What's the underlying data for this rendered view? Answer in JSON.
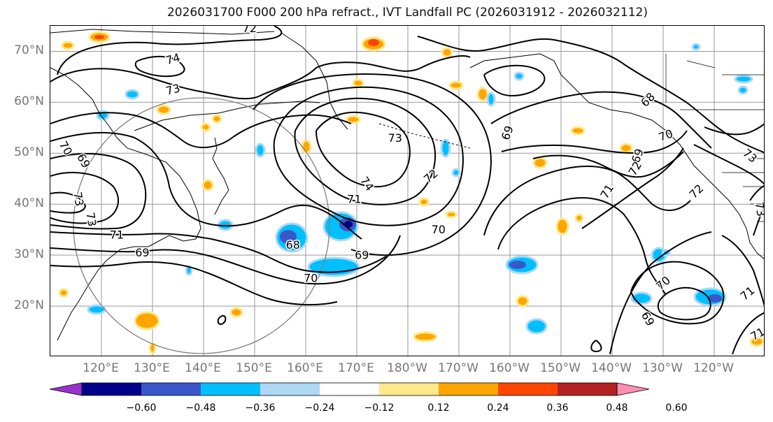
{
  "title": "2026031700 F000 200 hPa refract., IVT Landfall PC (2026031912 - 2026032112)",
  "map": {
    "lat_range": [
      10,
      75
    ],
    "lon_range_east": [
      110,
      250
    ],
    "lat_ticks": [
      {
        "value": 20,
        "label": "20°N"
      },
      {
        "value": 30,
        "label": "30°N"
      },
      {
        "value": 40,
        "label": "40°N"
      },
      {
        "value": 50,
        "label": "50°N"
      },
      {
        "value": 60,
        "label": "60°N"
      },
      {
        "value": 70,
        "label": "70°N"
      }
    ],
    "lon_ticks": [
      {
        "value": 120,
        "label": "120°E"
      },
      {
        "value": 130,
        "label": "130°E"
      },
      {
        "value": 140,
        "label": "140°E"
      },
      {
        "value": 150,
        "label": "150°E"
      },
      {
        "value": 160,
        "label": "160°E"
      },
      {
        "value": 170,
        "label": "170°E"
      },
      {
        "value": 180,
        "label": "180°W"
      },
      {
        "value": 190,
        "label": "170°W"
      },
      {
        "value": 200,
        "label": "160°W"
      },
      {
        "value": 210,
        "label": "150°W"
      },
      {
        "value": 220,
        "label": "140°W"
      },
      {
        "value": 230,
        "label": "130°W"
      },
      {
        "value": 240,
        "label": "120°W"
      }
    ],
    "contour_labels": [
      {
        "text": "74",
        "lon": 134,
        "lat": 68.5,
        "angle": -15
      },
      {
        "text": "73",
        "lon": 134,
        "lat": 62.5,
        "angle": -15
      },
      {
        "text": "72",
        "lon": 149,
        "lat": 74.5,
        "angle": 0
      },
      {
        "text": "73",
        "lon": 177.5,
        "lat": 53,
        "angle": 0
      },
      {
        "text": "74",
        "lon": 172,
        "lat": 44,
        "angle": 55
      },
      {
        "text": "72",
        "lon": 184.5,
        "lat": 45.5,
        "angle": -40
      },
      {
        "text": "71",
        "lon": 169.5,
        "lat": 41,
        "angle": 0
      },
      {
        "text": "70",
        "lon": 186,
        "lat": 35,
        "angle": 0
      },
      {
        "text": "68",
        "lon": 157.5,
        "lat": 32,
        "angle": 0
      },
      {
        "text": "69",
        "lon": 171,
        "lat": 30,
        "angle": 0
      },
      {
        "text": "70",
        "lon": 161,
        "lat": 25.5,
        "angle": 0
      },
      {
        "text": "71",
        "lon": 123,
        "lat": 34,
        "angle": 0
      },
      {
        "text": "69",
        "lon": 128,
        "lat": 30.5,
        "angle": 0
      },
      {
        "text": "70",
        "lon": 113,
        "lat": 51,
        "angle": 60
      },
      {
        "text": "69",
        "lon": 116.5,
        "lat": 48.5,
        "angle": 60
      },
      {
        "text": "73",
        "lon": 115.5,
        "lat": 41,
        "angle": 80
      },
      {
        "text": "73",
        "lon": 118,
        "lat": 37,
        "angle": 80
      },
      {
        "text": "69",
        "lon": 199.5,
        "lat": 54,
        "angle": -70
      },
      {
        "text": "68",
        "lon": 227,
        "lat": 60.5,
        "angle": -45
      },
      {
        "text": "70",
        "lon": 230.5,
        "lat": 53.5,
        "angle": -20
      },
      {
        "text": "73",
        "lon": 247,
        "lat": 49.5,
        "angle": 40
      },
      {
        "text": "69",
        "lon": 225,
        "lat": 49.5,
        "angle": -70
      },
      {
        "text": "72",
        "lon": 224.5,
        "lat": 47,
        "angle": -60
      },
      {
        "text": "71",
        "lon": 219,
        "lat": 42.5,
        "angle": -60
      },
      {
        "text": "72",
        "lon": 236.5,
        "lat": 42.5,
        "angle": -45
      },
      {
        "text": "70",
        "lon": 230,
        "lat": 24.5,
        "angle": -40
      },
      {
        "text": "69",
        "lon": 227,
        "lat": 17.5,
        "angle": 60
      },
      {
        "text": "71",
        "lon": 246.5,
        "lat": 22.5,
        "angle": -40
      },
      {
        "text": "71",
        "lon": 248.5,
        "lat": 14.5,
        "angle": -30
      },
      {
        "text": "73",
        "lon": 249,
        "lat": 39,
        "angle": 80
      }
    ]
  },
  "colorbar": {
    "colors": [
      "#9932cc",
      "#00008b",
      "#3a57c9",
      "#00bfff",
      "#add8f6",
      "#ffffff",
      "#ffe98a",
      "#ffa500",
      "#ff4500",
      "#b22222",
      "#ff8cb3"
    ],
    "tick_labels": [
      "-0.60",
      "-0.48",
      "-0.36",
      "-0.24",
      "-0.12",
      "0.12",
      "0.24",
      "0.36",
      "0.48",
      "0.60"
    ],
    "tick_values": [
      -0.6,
      -0.48,
      -0.36,
      -0.24,
      -0.12,
      0.12,
      0.24,
      0.36,
      0.48,
      0.6
    ]
  }
}
